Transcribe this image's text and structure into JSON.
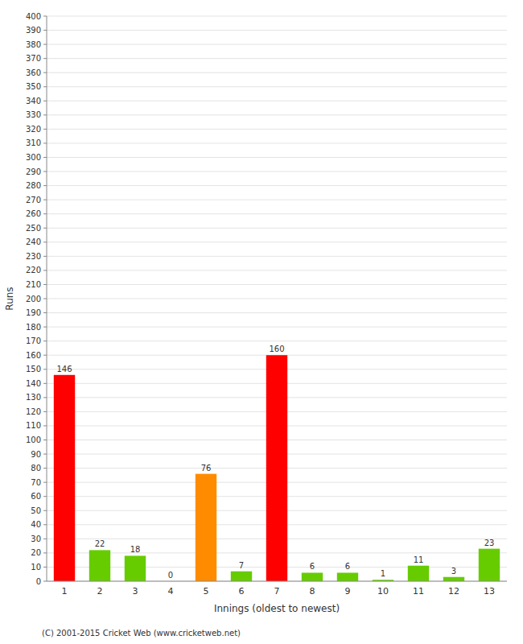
{
  "chart_data": {
    "type": "bar",
    "xlabel": "Innings (oldest to newest)",
    "ylabel": "Runs",
    "annotations": [
      "(C) 2001-2015 Cricket Web (www.cricketweb.net)"
    ],
    "categories": [
      "1",
      "2",
      "3",
      "4",
      "5",
      "6",
      "7",
      "8",
      "9",
      "10",
      "11",
      "12",
      "13"
    ],
    "values": [
      146,
      22,
      18,
      0,
      76,
      7,
      160,
      6,
      6,
      1,
      11,
      3,
      23
    ],
    "colors": [
      "#ff0000",
      "#66cc00",
      "#66cc00",
      "#66cc00",
      "#ff8c00",
      "#66cc00",
      "#ff0000",
      "#66cc00",
      "#66cc00",
      "#66cc00",
      "#66cc00",
      "#66cc00",
      "#66cc00"
    ],
    "ylim": [
      0,
      400
    ],
    "yticks": [
      0,
      10,
      20,
      30,
      40,
      50,
      60,
      70,
      80,
      90,
      100,
      110,
      120,
      130,
      140,
      150,
      160,
      170,
      180,
      190,
      200,
      210,
      220,
      230,
      240,
      250,
      260,
      270,
      280,
      290,
      300,
      310,
      320,
      330,
      340,
      350,
      360,
      370,
      380,
      390,
      400
    ],
    "grid": true,
    "data_labels": true
  }
}
